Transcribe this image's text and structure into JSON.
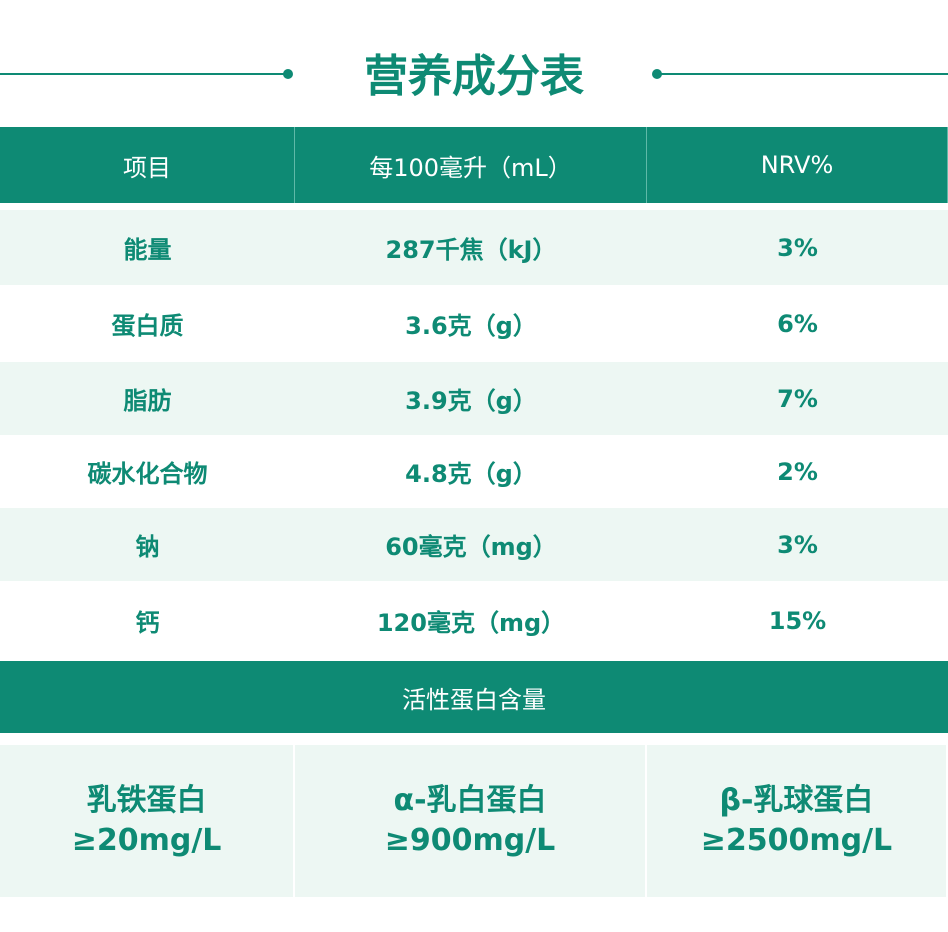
{
  "title": "营养成分表",
  "table": {
    "header": [
      "项目",
      "每100毫升（mL）",
      "NRV%"
    ],
    "rows": [
      [
        "能量",
        "287千焦（kJ）",
        "3%"
      ],
      [
        "蛋白质",
        "3.6克（g）",
        "6%"
      ],
      [
        "脂肪",
        "3.9克（g）",
        "7%"
      ],
      [
        "碳水化合物",
        "4.8克（g）",
        "2%"
      ],
      [
        "钠",
        "60毫克（mg）",
        "3%"
      ],
      [
        "钙",
        "120毫克（mg）",
        "15%"
      ]
    ]
  },
  "active": {
    "title": "活性蛋白含量",
    "items": [
      {
        "name": "乳铁蛋白",
        "value": "≥20mg/L"
      },
      {
        "name": "α-乳白蛋白",
        "value": "≥900mg/L"
      },
      {
        "name": "β-乳球蛋白",
        "value": "≥2500mg/L"
      }
    ]
  }
}
